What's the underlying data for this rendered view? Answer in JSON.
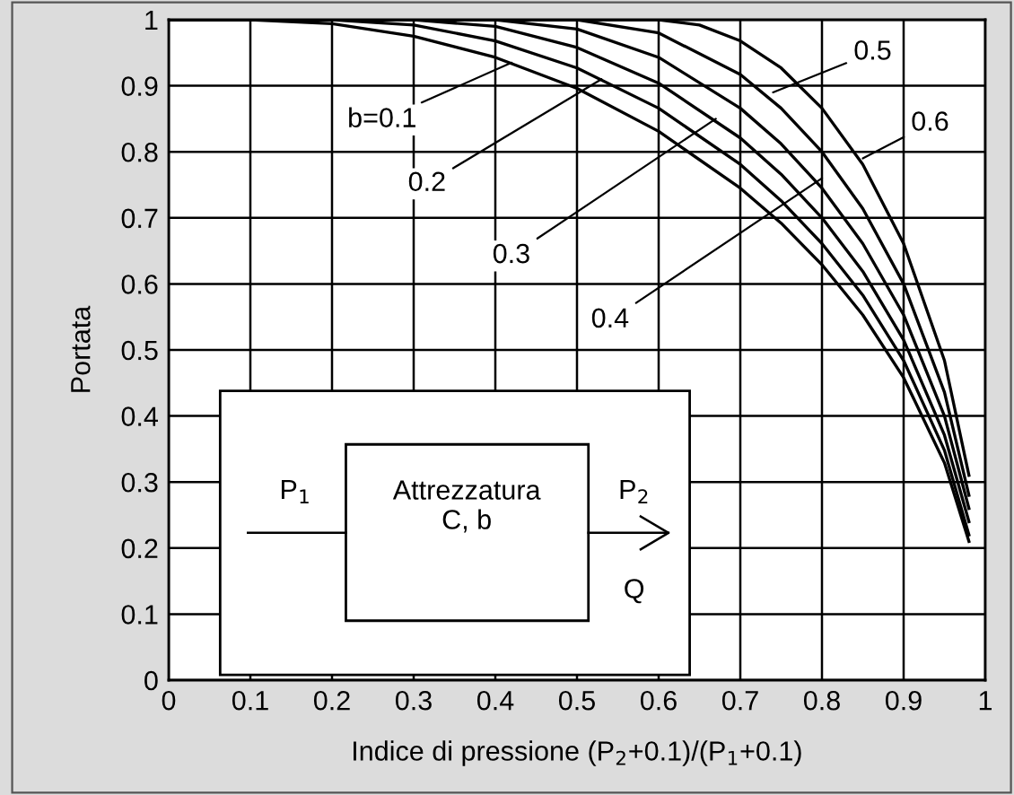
{
  "chart_data": {
    "type": "line",
    "xlabel": "Indice di pressione (P$_{2}$+0.1)/(P$_{1}$+0.1)",
    "ylabel": "Portata",
    "xlim": [
      0,
      1
    ],
    "ylim": [
      0,
      1
    ],
    "xticks": [
      0,
      0.1,
      0.2,
      0.3,
      0.4,
      0.5,
      0.6,
      0.7,
      0.8,
      0.9,
      1
    ],
    "yticks": [
      0,
      0.1,
      0.2,
      0.3,
      0.4,
      0.5,
      0.6,
      0.7,
      0.8,
      0.9,
      1
    ],
    "grid": true,
    "marker": "none",
    "line_style": "solid",
    "series": [
      {
        "color": "#000000",
        "x": [
          0,
          0.1,
          0.2,
          0.3,
          0.4,
          0.5,
          0.6,
          0.7,
          0.75,
          0.8,
          0.85,
          0.9,
          0.95,
          0.98
        ],
        "values": [
          1,
          1,
          0.994,
          0.975,
          0.943,
          0.896,
          0.831,
          0.745,
          0.692,
          0.629,
          0.553,
          0.458,
          0.329,
          0.21
        ]
      },
      {
        "color": "#000000",
        "x": [
          0,
          0.2,
          0.3,
          0.4,
          0.5,
          0.6,
          0.7,
          0.75,
          0.8,
          0.85,
          0.9,
          0.95,
          0.98
        ],
        "values": [
          1,
          1,
          0.992,
          0.968,
          0.927,
          0.866,
          0.781,
          0.726,
          0.661,
          0.583,
          0.484,
          0.348,
          0.22
        ]
      },
      {
        "color": "#000000",
        "x": [
          0,
          0.3,
          0.4,
          0.5,
          0.6,
          0.7,
          0.75,
          0.8,
          0.85,
          0.9,
          0.95,
          0.98
        ],
        "values": [
          1,
          1,
          0.99,
          0.958,
          0.904,
          0.821,
          0.766,
          0.7,
          0.619,
          0.515,
          0.371,
          0.24
        ]
      },
      {
        "color": "#000000",
        "x": [
          0,
          0.4,
          0.5,
          0.6,
          0.7,
          0.75,
          0.8,
          0.85,
          0.9,
          0.95,
          0.98
        ],
        "values": [
          1,
          1,
          0.986,
          0.943,
          0.866,
          0.812,
          0.745,
          0.661,
          0.553,
          0.4,
          0.26
        ]
      },
      {
        "color": "#000000",
        "x": [
          0,
          0.5,
          0.6,
          0.7,
          0.75,
          0.8,
          0.85,
          0.9,
          0.95,
          0.98
        ],
        "values": [
          1,
          1,
          0.98,
          0.917,
          0.866,
          0.8,
          0.714,
          0.6,
          0.436,
          0.28
        ]
      },
      {
        "color": "#000000",
        "x": [
          0,
          0.6,
          0.65,
          0.7,
          0.75,
          0.8,
          0.85,
          0.9,
          0.95,
          0.98
        ],
        "values": [
          1,
          1,
          0.992,
          0.968,
          0.927,
          0.866,
          0.781,
          0.661,
          0.484,
          0.31
        ]
      }
    ],
    "annotations": [
      {
        "text": "b=0.1",
        "x": 0.42,
        "y": 0.935
      },
      {
        "text": "0.2",
        "x": 0.53,
        "y": 0.91
      },
      {
        "text": "0.3",
        "x": 0.67,
        "y": 0.85
      },
      {
        "text": "0.4",
        "x": 0.8,
        "y": 0.76
      },
      {
        "text": "0.5",
        "x": 0.74,
        "y": 0.89
      },
      {
        "text": "0.6",
        "x": 0.85,
        "y": 0.79
      },
      "P$_{1}$",
      "Attrezzatura\nC, b",
      "P$_{2}$",
      "Q"
    ]
  }
}
